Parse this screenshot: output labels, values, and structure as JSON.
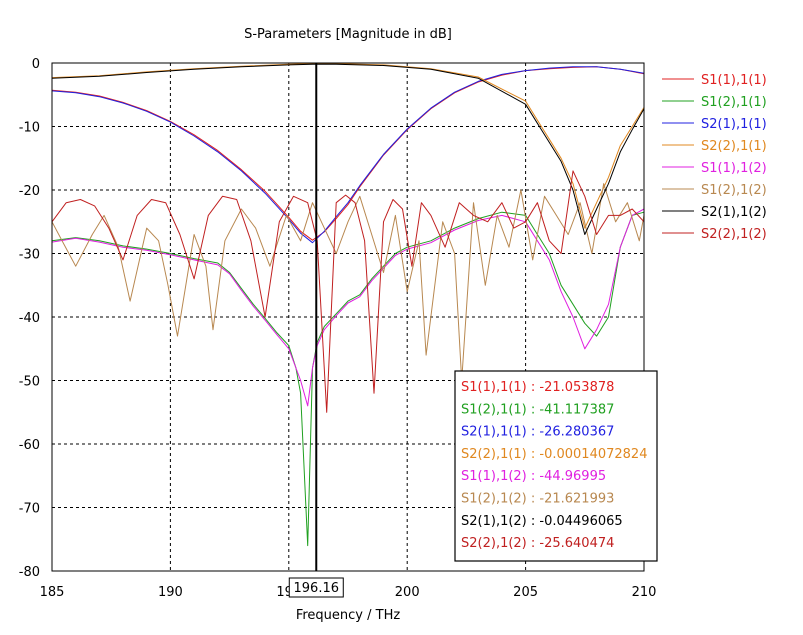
{
  "chart_data": {
    "type": "line",
    "title": "S-Parameters [Magnitude in dB]",
    "xlabel": "Frequency / THz",
    "ylabel": "",
    "xlim": [
      185,
      210
    ],
    "ylim": [
      -80,
      0
    ],
    "x_ticks": [
      "185",
      "190",
      "195",
      "200",
      "205",
      "210"
    ],
    "y_ticks": [
      "0",
      "-10",
      "-20",
      "-30",
      "-40",
      "-50",
      "-60",
      "-70",
      "-80"
    ],
    "grid": true,
    "legend_position": "right",
    "marker": {
      "x": 196.16,
      "label": "196.16"
    },
    "series": [
      {
        "name": "S1(1),1(1)",
        "color": "#e02020",
        "marker_readout": "S1(1),1(1) : -21.053878",
        "x": [
          185,
          186,
          187,
          188,
          189,
          190,
          191,
          192,
          193,
          194,
          195,
          195.5,
          196,
          196.5,
          197,
          197.5,
          198,
          199,
          200,
          201,
          202,
          203,
          204,
          205,
          206,
          207,
          208,
          209,
          210
        ],
        "y": [
          -4.3,
          -4.6,
          -5.2,
          -6.2,
          -7.5,
          -9.2,
          -11.3,
          -13.8,
          -16.8,
          -20.2,
          -24.3,
          -26.5,
          -27.9,
          -26.6,
          -24.5,
          -22.3,
          -19.5,
          -14.5,
          -10.5,
          -7.2,
          -4.7,
          -3.0,
          -1.9,
          -1.2,
          -0.9,
          -0.7,
          -0.6,
          -1.0,
          -1.7
        ]
      },
      {
        "name": "S1(2),1(1)",
        "color": "#20a020",
        "marker_readout": "S1(2),1(1) : -41.117387",
        "x": [
          185,
          186,
          187,
          188,
          189,
          190,
          191,
          192,
          192.5,
          193,
          193.5,
          194,
          194.5,
          195,
          195.3,
          195.5,
          195.8,
          196,
          196.2,
          196.5,
          197,
          197.5,
          198,
          198.5,
          199,
          199.5,
          200,
          201,
          202,
          203,
          204,
          205,
          205.5,
          206,
          206.5,
          207,
          207.5,
          208,
          208.5,
          209,
          209.5,
          210
        ],
        "y": [
          -28,
          -27.5,
          -28,
          -28.8,
          -29.3,
          -30,
          -30.8,
          -31.5,
          -33,
          -35.5,
          -38,
          -40.2,
          -42.5,
          -44.5,
          -48,
          -52,
          -76,
          -48,
          -44,
          -41.5,
          -39.5,
          -37.5,
          -36.5,
          -34,
          -32,
          -30,
          -29,
          -28,
          -26,
          -24.5,
          -23.5,
          -24,
          -27,
          -30,
          -35,
          -38,
          -41,
          -43,
          -40,
          -29,
          -24,
          -23.5
        ]
      },
      {
        "name": "S2(1),1(1)",
        "color": "#2020e0",
        "marker_readout": "S2(1),1(1) : -26.280367",
        "x": [
          185,
          186,
          187,
          188,
          189,
          190,
          191,
          192,
          193,
          194,
          195,
          195.5,
          196,
          196.5,
          197,
          197.5,
          198,
          199,
          200,
          201,
          202,
          203,
          204,
          205,
          206,
          207,
          208,
          209,
          210
        ],
        "y": [
          -4.4,
          -4.7,
          -5.3,
          -6.3,
          -7.6,
          -9.3,
          -11.5,
          -14,
          -17,
          -20.5,
          -24.6,
          -26.8,
          -28.3,
          -26.5,
          -24.2,
          -22,
          -19.3,
          -14.4,
          -10.4,
          -7.1,
          -4.6,
          -2.9,
          -1.8,
          -1.2,
          -0.8,
          -0.6,
          -0.6,
          -1.0,
          -1.6
        ]
      },
      {
        "name": "S2(2),1(1)",
        "color": "#e08820",
        "marker_readout": "S2(2),1(1) : -0.00014072824",
        "x": [
          185,
          187,
          189,
          191,
          193,
          195,
          196,
          197,
          199,
          201,
          203,
          205,
          205.5,
          206,
          206.5,
          207,
          207.5,
          208,
          208.5,
          209,
          209.5,
          210
        ],
        "y": [
          -2.3,
          -2.0,
          -1.4,
          -0.9,
          -0.5,
          -0.2,
          -0.1,
          -0.1,
          -0.3,
          -0.9,
          -2.2,
          -6,
          -9,
          -12,
          -15,
          -19,
          -26,
          -22,
          -18,
          -13,
          -10,
          -7
        ]
      },
      {
        "name": "S1(1),1(2)",
        "color": "#e020e0",
        "marker_readout": "S1(1),1(2) : -44.96995",
        "x": [
          185,
          186,
          187,
          188,
          189,
          190,
          191,
          192,
          192.5,
          193,
          193.5,
          194,
          194.5,
          195,
          195.5,
          195.8,
          196,
          196.2,
          196.5,
          197,
          197.5,
          198,
          198.5,
          199,
          199.5,
          200,
          201,
          202,
          203,
          204,
          205,
          205.5,
          206,
          206.5,
          207,
          207.5,
          208,
          208.5,
          209,
          209.5,
          210
        ],
        "y": [
          -28.2,
          -27.6,
          -28.2,
          -29,
          -29.5,
          -30.2,
          -31,
          -31.8,
          -33.2,
          -35.8,
          -38.3,
          -40.5,
          -42.8,
          -45,
          -50,
          -54,
          -48,
          -44.5,
          -42,
          -39.8,
          -37.8,
          -36.8,
          -34.3,
          -32.3,
          -30.3,
          -29.3,
          -28.3,
          -26.3,
          -24.8,
          -24,
          -25,
          -28,
          -31,
          -36,
          -40,
          -45,
          -42,
          -38,
          -29,
          -24,
          -23
        ]
      },
      {
        "name": "S1(2),1(2)",
        "color": "#b88850",
        "marker_readout": "S1(2),1(2) : -21.621993",
        "x": [
          185,
          185.5,
          186,
          186.7,
          187.2,
          187.8,
          188.3,
          189,
          189.5,
          189.9,
          190.3,
          191,
          191.5,
          191.8,
          192.3,
          193,
          193.6,
          194.2,
          194.9,
          195.5,
          196,
          196.5,
          197,
          197.5,
          198,
          198.5,
          199,
          199.5,
          200,
          200.5,
          200.8,
          201.5,
          202,
          202.3,
          202.8,
          203.3,
          203.8,
          204.3,
          204.8,
          205.3,
          205.8,
          206.3,
          206.8,
          207.3,
          207.8,
          208.3,
          208.8,
          209.3,
          209.8,
          210
        ],
        "y": [
          -25,
          -28.5,
          -32,
          -27,
          -24,
          -29,
          -37.5,
          -26,
          -28,
          -35,
          -43,
          -27,
          -32,
          -42,
          -28,
          -23,
          -26,
          -32,
          -24,
          -28,
          -22,
          -26,
          -30,
          -25,
          -21,
          -27,
          -33,
          -24,
          -36,
          -28,
          -46,
          -25,
          -30,
          -50,
          -22,
          -35,
          -24,
          -29,
          -20,
          -31,
          -21,
          -24,
          -27,
          -22,
          -30,
          -19,
          -25,
          -22,
          -28,
          -24
        ]
      },
      {
        "name": "S2(1),1(2)",
        "color": "#000000",
        "marker_readout": "S2(1),1(2) : -0.04496065",
        "x": [
          185,
          187,
          189,
          191,
          193,
          195,
          196,
          197,
          199,
          201,
          203,
          205,
          205.5,
          206,
          206.5,
          207,
          207.5,
          208,
          208.5,
          209,
          209.5,
          210
        ],
        "y": [
          -2.4,
          -2.1,
          -1.5,
          -1,
          -0.6,
          -0.3,
          -0.2,
          -0.2,
          -0.4,
          -1.0,
          -2.4,
          -6.5,
          -9.5,
          -12.5,
          -15.5,
          -20,
          -27,
          -23,
          -19,
          -14,
          -10.5,
          -7.2
        ]
      },
      {
        "name": "S2(2),1(2)",
        "color": "#c02020",
        "marker_readout": "S2(2),1(2) : -25.640474",
        "x": [
          185,
          185.6,
          186.2,
          186.8,
          187.4,
          188,
          188.6,
          189.2,
          189.8,
          190.4,
          191,
          191.6,
          192.2,
          192.8,
          193.4,
          194,
          194.6,
          195.2,
          195.8,
          196.2,
          196.6,
          197,
          197.4,
          197.8,
          198.2,
          198.6,
          199,
          199.4,
          199.8,
          200.2,
          200.6,
          201,
          201.6,
          202.2,
          202.8,
          203.4,
          204,
          204.5,
          205,
          205.5,
          206,
          206.5,
          207,
          207.5,
          208,
          208.5,
          209,
          209.5,
          210
        ],
        "y": [
          -25,
          -22,
          -21.5,
          -22.5,
          -26,
          -31,
          -24,
          -21.5,
          -22,
          -27,
          -34,
          -24,
          -21,
          -21.5,
          -28,
          -40,
          -25,
          -21,
          -22,
          -28,
          -55,
          -22,
          -20.8,
          -22,
          -28,
          -52,
          -25,
          -21.5,
          -23,
          -32,
          -22,
          -24,
          -29,
          -22,
          -24,
          -25,
          -22,
          -26,
          -25,
          -22,
          -28,
          -30,
          -17,
          -21,
          -27,
          -24,
          -24,
          -23,
          -25
        ]
      }
    ]
  }
}
